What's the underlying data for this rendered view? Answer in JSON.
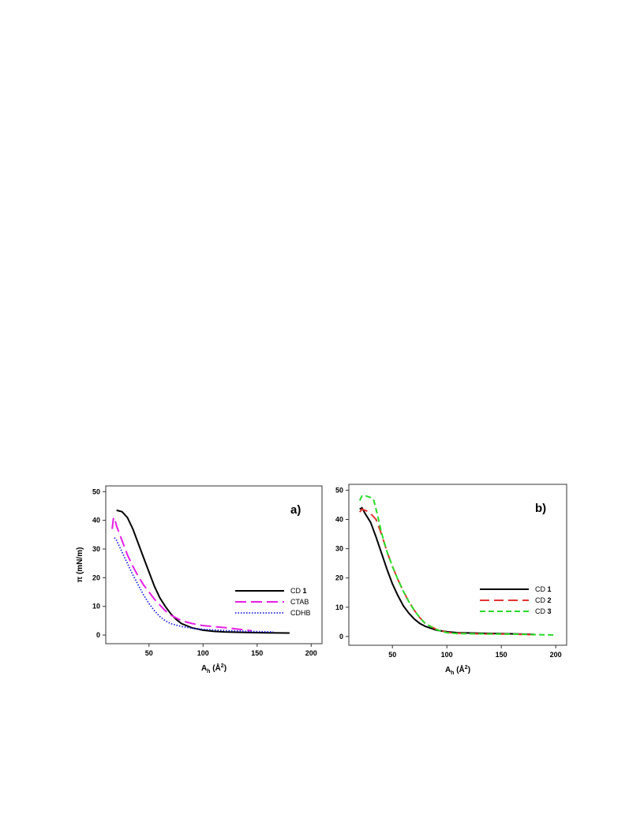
{
  "chart_data": [
    {
      "type": "line",
      "panel_label": "a)",
      "xlabel": "A_h (Å^2)",
      "ylabel": "π (mN/m)",
      "xlim": [
        10,
        210
      ],
      "ylim": [
        -3,
        52
      ],
      "xticks": [
        50,
        100,
        150,
        200
      ],
      "yticks": [
        0,
        10,
        20,
        30,
        40,
        50
      ],
      "grid": false,
      "legend_position": "right",
      "series": [
        {
          "name": "CD 1",
          "label_prefix": "CD ",
          "label_bold": "1",
          "color": "#000000",
          "style": "solid",
          "points": [
            [
              20,
              43.5
            ],
            [
              25,
              43
            ],
            [
              30,
              41
            ],
            [
              35,
              37
            ],
            [
              40,
              32
            ],
            [
              45,
              27
            ],
            [
              50,
              22
            ],
            [
              55,
              17
            ],
            [
              60,
              13
            ],
            [
              65,
              10
            ],
            [
              70,
              7.5
            ],
            [
              75,
              5.5
            ],
            [
              80,
              4
            ],
            [
              90,
              2.5
            ],
            [
              100,
              1.7
            ],
            [
              110,
              1.3
            ],
            [
              120,
              1.1
            ],
            [
              140,
              0.9
            ],
            [
              160,
              0.8
            ],
            [
              180,
              0.7
            ]
          ]
        },
        {
          "name": "CTAB",
          "label_prefix": "CTAB",
          "label_bold": "",
          "color": "#e61ee6",
          "style": "dashed",
          "points": [
            [
              16,
              37
            ],
            [
              17,
              40.5
            ],
            [
              18,
              41
            ],
            [
              20,
              38
            ],
            [
              25,
              33
            ],
            [
              30,
              28
            ],
            [
              35,
              24
            ],
            [
              40,
              20.5
            ],
            [
              45,
              17.5
            ],
            [
              50,
              15
            ],
            [
              55,
              12.5
            ],
            [
              60,
              10.5
            ],
            [
              65,
              8.5
            ],
            [
              70,
              7
            ],
            [
              80,
              5
            ],
            [
              90,
              4
            ],
            [
              100,
              3.3
            ],
            [
              120,
              2.6
            ],
            [
              145,
              1.5
            ]
          ]
        },
        {
          "name": "CDHB",
          "label_prefix": "CDHB",
          "label_bold": "",
          "color": "#1e1edc",
          "style": "dotted",
          "points": [
            [
              18,
              34
            ],
            [
              20,
              33
            ],
            [
              25,
              29
            ],
            [
              30,
              25
            ],
            [
              35,
              21
            ],
            [
              40,
              17.5
            ],
            [
              45,
              14
            ],
            [
              50,
              11
            ],
            [
              55,
              8.5
            ],
            [
              60,
              6.5
            ],
            [
              65,
              5
            ],
            [
              70,
              4
            ],
            [
              80,
              3
            ],
            [
              90,
              2.4
            ],
            [
              100,
              2
            ],
            [
              120,
              1.6
            ],
            [
              140,
              1.3
            ],
            [
              165,
              1.1
            ]
          ]
        }
      ]
    },
    {
      "type": "line",
      "panel_label": "b)",
      "xlabel": "A_h (Å^2)",
      "ylabel": "",
      "xlim": [
        10,
        210
      ],
      "ylim": [
        -3,
        52
      ],
      "xticks": [
        50,
        100,
        150,
        200
      ],
      "yticks": [
        0,
        10,
        20,
        30,
        40,
        50
      ],
      "grid": false,
      "legend_position": "right",
      "series": [
        {
          "name": "CD 1",
          "label_prefix": "CD ",
          "label_bold": "1",
          "color": "#000000",
          "style": "solid",
          "points": [
            [
              20,
              43.5
            ],
            [
              22,
              44
            ],
            [
              25,
              42
            ],
            [
              30,
              39
            ],
            [
              35,
              34
            ],
            [
              40,
              28.5
            ],
            [
              45,
              23
            ],
            [
              50,
              18
            ],
            [
              55,
              14
            ],
            [
              60,
              10.5
            ],
            [
              65,
              8
            ],
            [
              70,
              6
            ],
            [
              75,
              4.5
            ],
            [
              80,
              3.5
            ],
            [
              90,
              2.2
            ],
            [
              100,
              1.6
            ],
            [
              110,
              1.3
            ],
            [
              130,
              1.1
            ],
            [
              160,
              0.9
            ],
            [
              180,
              0.7
            ]
          ]
        },
        {
          "name": "CD 2",
          "label_prefix": "CD ",
          "label_bold": "2",
          "color": "#e63232",
          "style": "longdash",
          "points": [
            [
              20,
              42.5
            ],
            [
              22,
              43.5
            ],
            [
              26,
              43
            ],
            [
              30,
              42
            ],
            [
              35,
              40
            ],
            [
              40,
              35
            ],
            [
              45,
              29
            ],
            [
              50,
              24
            ],
            [
              55,
              19.5
            ],
            [
              60,
              15.5
            ],
            [
              65,
              12
            ],
            [
              70,
              9
            ],
            [
              75,
              6.5
            ],
            [
              80,
              4.5
            ],
            [
              90,
              2.5
            ],
            [
              100,
              1.4
            ],
            [
              110,
              1.1
            ],
            [
              130,
              0.9
            ],
            [
              160,
              0.8
            ],
            [
              180,
              0.6
            ]
          ]
        },
        {
          "name": "CD 3",
          "label_prefix": "CD ",
          "label_bold": "3",
          "color": "#28dc28",
          "style": "shortdash",
          "points": [
            [
              20,
              46.5
            ],
            [
              22,
              48
            ],
            [
              26,
              48
            ],
            [
              30,
              47.5
            ],
            [
              33,
              46.5
            ],
            [
              36,
              42
            ],
            [
              40,
              35.5
            ],
            [
              45,
              29
            ],
            [
              50,
              24
            ],
            [
              55,
              19.5
            ],
            [
              60,
              15.5
            ],
            [
              65,
              12
            ],
            [
              70,
              9
            ],
            [
              75,
              6.5
            ],
            [
              80,
              4.5
            ],
            [
              90,
              2.4
            ],
            [
              100,
              1.3
            ],
            [
              110,
              1
            ],
            [
              130,
              0.9
            ],
            [
              160,
              0.8
            ],
            [
              185,
              0.6
            ],
            [
              200,
              0.5
            ]
          ]
        }
      ]
    }
  ]
}
